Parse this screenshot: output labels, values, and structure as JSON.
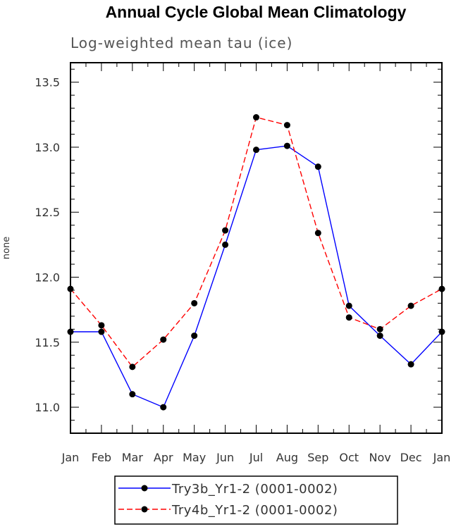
{
  "chart_data": {
    "type": "line",
    "title": "Annual Cycle Global Mean Climatology",
    "subtitle": "Log-weighted mean tau (ice)",
    "ylabel": "none",
    "xlabel": "",
    "categories": [
      "Jan",
      "Feb",
      "Mar",
      "Apr",
      "May",
      "Jun",
      "Jul",
      "Aug",
      "Sep",
      "Oct",
      "Nov",
      "Dec",
      "Jan"
    ],
    "ylim": [
      10.8,
      13.65
    ],
    "yticks": [
      "11.0",
      "11.5",
      "12.0",
      "12.5",
      "13.0",
      "13.5"
    ],
    "grid": false,
    "legend": "bottom",
    "series": [
      {
        "name": "Try3b_Yr1-2 (0001-0002)",
        "color": "#0000ff",
        "dash": "solid",
        "values": [
          11.58,
          11.58,
          11.1,
          11.0,
          11.55,
          12.25,
          12.98,
          13.01,
          12.85,
          11.78,
          11.55,
          11.33,
          11.58
        ]
      },
      {
        "name": "Try4b_Yr1-2 (0001-0002)",
        "color": "#ff0000",
        "dash": "dashed",
        "values": [
          11.91,
          11.63,
          11.31,
          11.52,
          11.8,
          12.36,
          13.23,
          13.17,
          12.34,
          11.69,
          11.6,
          11.78,
          11.91
        ]
      }
    ]
  }
}
